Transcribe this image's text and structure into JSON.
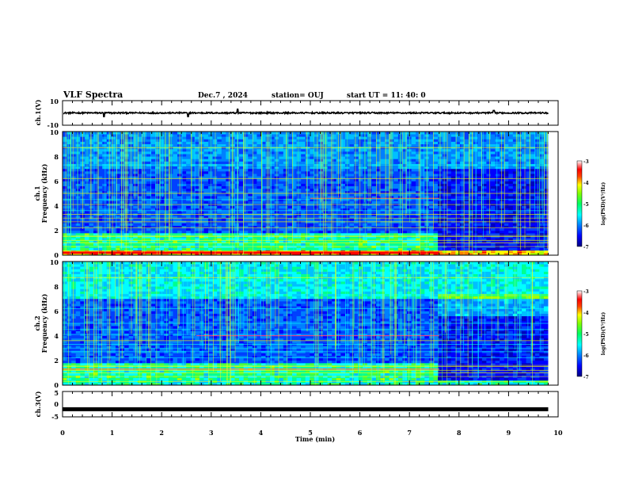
{
  "header": {
    "title": "VLF Spectra",
    "date": "Dec.7 , 2024",
    "station": "station= OUJ",
    "start": "start  UT =   11: 40: 0"
  },
  "colors": {
    "spectrogram_scale": [
      "#000080",
      "#0000ff",
      "#0060ff",
      "#00c0ff",
      "#00ffc0",
      "#40ff40",
      "#c0ff00",
      "#ffff00",
      "#ff8000",
      "#ff0000",
      "#ffc0c0",
      "#ffffff"
    ]
  },
  "chart_data": [
    {
      "type": "line",
      "ylabel": "ch.1(V)",
      "ylim": [
        -10,
        10
      ],
      "yticks": [
        "10",
        "-10"
      ],
      "description_series": "ch.1 waveform amplitude",
      "x": [
        0,
        0.8,
        0.82,
        1.5,
        2.5,
        2.52,
        3.5,
        3.52,
        5.0,
        6.8,
        8.7,
        9.8
      ],
      "values": [
        0,
        0,
        -3,
        0,
        0,
        -3,
        0,
        3,
        0,
        0,
        2,
        0
      ]
    },
    {
      "type": "heatmap",
      "ylabel": "Frequency (kHz)",
      "channel": "ch.1",
      "ylim": [
        0,
        10
      ],
      "yticks": [
        "0",
        "2",
        "4",
        "6",
        "8",
        "10"
      ],
      "colorbar": {
        "label": "log(PSD)(V²/Hz)",
        "range": [
          -7,
          -3
        ],
        "ticks": [
          "-3",
          "-4",
          "-5",
          "-6",
          "-7"
        ]
      }
    },
    {
      "type": "heatmap",
      "ylabel": "Frequency (kHz)",
      "channel": "ch.2",
      "ylim": [
        0,
        10
      ],
      "yticks": [
        "0",
        "2",
        "4",
        "6",
        "8",
        "10"
      ],
      "colorbar": {
        "label": "log(PSD)(V²/Hz)",
        "range": [
          -7,
          -3
        ],
        "ticks": [
          "-3",
          "-4",
          "-5",
          "-6",
          "-7"
        ]
      }
    },
    {
      "type": "line",
      "ylabel": "ch.3(V)",
      "ylim": [
        -5,
        5
      ],
      "yticks": [
        "5",
        "0",
        "-5"
      ],
      "x": [
        0,
        9.8
      ],
      "values": [
        -2,
        -2
      ]
    }
  ],
  "xaxis": {
    "label": "Time (min)",
    "ticks": [
      "0",
      "1",
      "2",
      "3",
      "4",
      "5",
      "6",
      "7",
      "8",
      "9",
      "10"
    ],
    "range": [
      0,
      10
    ],
    "data_end": 9.8
  }
}
